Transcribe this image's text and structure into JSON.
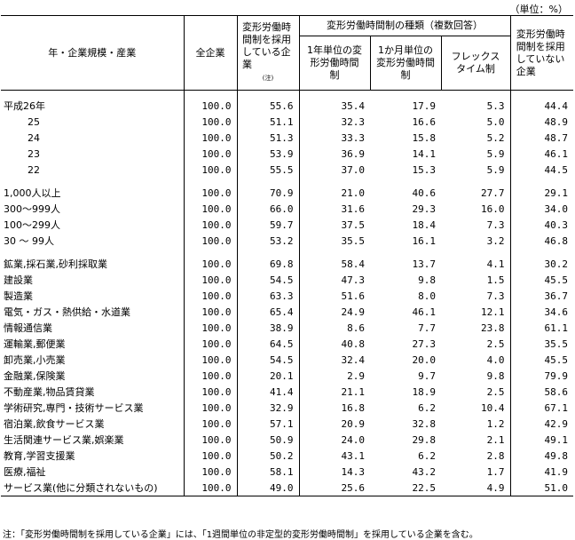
{
  "unit": "（単位：%）",
  "headers": {
    "row_label": "年・企業規模・産業",
    "all": "全企業",
    "adopting": "変形労働時間制を採用している企業",
    "adopting_note": "(注)",
    "group": "変形労働時間制の種類（複数回答）",
    "yearly": "1年単位の変形労働時間制",
    "monthly": "1か月単位の変形労働時間制",
    "flex": "フレックスタイム制",
    "not_adopting": "変形労働時間制を採用していない企業"
  },
  "groups": [
    [
      {
        "label": "平成26年",
        "indent": false,
        "values": [
          "100.0",
          "55.6",
          "35.4",
          "17.9",
          "5.3",
          "44.4"
        ]
      },
      {
        "label": "25",
        "indent": true,
        "values": [
          "100.0",
          "51.1",
          "32.3",
          "16.6",
          "5.0",
          "48.9"
        ]
      },
      {
        "label": "24",
        "indent": true,
        "values": [
          "100.0",
          "51.3",
          "33.3",
          "15.8",
          "5.2",
          "48.7"
        ]
      },
      {
        "label": "23",
        "indent": true,
        "values": [
          "100.0",
          "53.9",
          "36.9",
          "14.1",
          "5.9",
          "46.1"
        ]
      },
      {
        "label": "22",
        "indent": true,
        "values": [
          "100.0",
          "55.5",
          "37.0",
          "15.3",
          "5.9",
          "44.5"
        ]
      }
    ],
    [
      {
        "label": "1,000人以上",
        "indent": false,
        "values": [
          "100.0",
          "70.9",
          "21.0",
          "40.6",
          "27.7",
          "29.1"
        ]
      },
      {
        "label": "300～999人",
        "indent": false,
        "values": [
          "100.0",
          "66.0",
          "31.6",
          "29.3",
          "16.0",
          "34.0"
        ]
      },
      {
        "label": "100～299人",
        "indent": false,
        "values": [
          "100.0",
          "59.7",
          "37.5",
          "18.4",
          "7.3",
          "40.3"
        ]
      },
      {
        "label": "30 ～ 99人",
        "indent": false,
        "values": [
          "100.0",
          "53.2",
          "35.5",
          "16.1",
          "3.2",
          "46.8"
        ]
      }
    ],
    [
      {
        "label": "鉱業,採石業,砂利採取業",
        "indent": false,
        "values": [
          "100.0",
          "69.8",
          "58.4",
          "13.7",
          "4.1",
          "30.2"
        ]
      },
      {
        "label": "建設業",
        "indent": false,
        "values": [
          "100.0",
          "54.5",
          "47.3",
          "9.8",
          "1.5",
          "45.5"
        ]
      },
      {
        "label": "製造業",
        "indent": false,
        "values": [
          "100.0",
          "63.3",
          "51.6",
          "8.0",
          "7.3",
          "36.7"
        ]
      },
      {
        "label": "電気・ガス・熱供給・水道業",
        "indent": false,
        "values": [
          "100.0",
          "65.4",
          "24.9",
          "46.1",
          "12.1",
          "34.6"
        ]
      },
      {
        "label": "情報通信業",
        "indent": false,
        "values": [
          "100.0",
          "38.9",
          "8.6",
          "7.7",
          "23.8",
          "61.1"
        ]
      },
      {
        "label": "運輸業,郵便業",
        "indent": false,
        "values": [
          "100.0",
          "64.5",
          "40.8",
          "27.3",
          "2.5",
          "35.5"
        ]
      },
      {
        "label": "卸売業,小売業",
        "indent": false,
        "values": [
          "100.0",
          "54.5",
          "32.4",
          "20.0",
          "4.0",
          "45.5"
        ]
      },
      {
        "label": "金融業,保険業",
        "indent": false,
        "values": [
          "100.0",
          "20.1",
          "2.9",
          "9.7",
          "9.8",
          "79.9"
        ]
      },
      {
        "label": "不動産業,物品賃貸業",
        "indent": false,
        "values": [
          "100.0",
          "41.4",
          "21.1",
          "18.9",
          "2.5",
          "58.6"
        ]
      },
      {
        "label": "学術研究,専門・技術サービス業",
        "indent": false,
        "values": [
          "100.0",
          "32.9",
          "16.8",
          "6.2",
          "10.4",
          "67.1"
        ]
      },
      {
        "label": "宿泊業,飲食サービス業",
        "indent": false,
        "values": [
          "100.0",
          "57.1",
          "20.9",
          "32.8",
          "1.2",
          "42.9"
        ]
      },
      {
        "label": "生活関連サービス業,娯楽業",
        "indent": false,
        "values": [
          "100.0",
          "50.9",
          "24.0",
          "29.8",
          "2.1",
          "49.1"
        ]
      },
      {
        "label": "教育,学習支援業",
        "indent": false,
        "values": [
          "100.0",
          "50.2",
          "43.1",
          "6.2",
          "2.8",
          "49.8"
        ]
      },
      {
        "label": "医療,福祉",
        "indent": false,
        "values": [
          "100.0",
          "58.1",
          "14.3",
          "43.2",
          "1.7",
          "41.9"
        ]
      },
      {
        "label": "サービス業(他に分類されないもの)",
        "indent": false,
        "values": [
          "100.0",
          "49.0",
          "25.6",
          "22.5",
          "4.9",
          "51.0"
        ]
      }
    ]
  ],
  "note": "注：「変形労働時間制を採用している企業」には、「1週間単位の非定型的変形労働時間制」を採用している企業を含む。"
}
